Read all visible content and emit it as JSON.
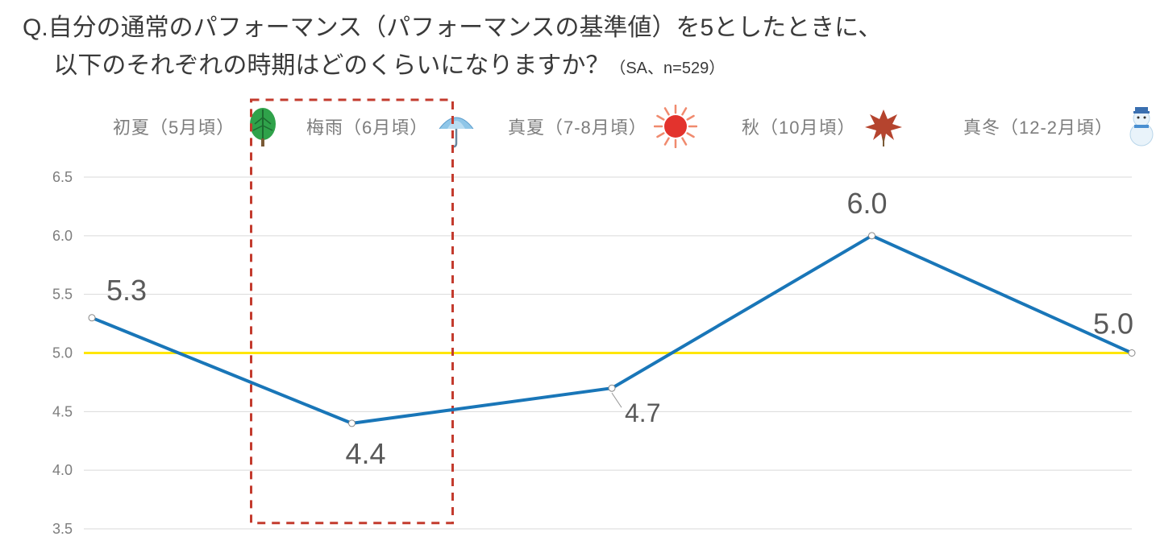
{
  "title_line1": "Q.自分の通常のパフォーマンス（パフォーマンスの基準値）を5としたときに、",
  "title_line2_main": "　 以下のそれぞれの時期はどのくらいになりますか？",
  "title_line2_sub": "（SA、n=529）",
  "seasons": [
    {
      "label": "初夏（5月頃）",
      "icon": "leaf"
    },
    {
      "label": "梅雨（6月頃）",
      "icon": "umbrella"
    },
    {
      "label": "真夏（7-8月頃）",
      "icon": "sun"
    },
    {
      "label": "秋（10月頃）",
      "icon": "maple"
    },
    {
      "label": "真冬（12-2月頃）",
      "icon": "snowman"
    }
  ],
  "chart": {
    "type": "line",
    "categories": [
      "初夏",
      "梅雨",
      "真夏",
      "秋",
      "真冬"
    ],
    "values": [
      5.3,
      4.4,
      4.7,
      6.0,
      5.0
    ],
    "value_labels": [
      "5.3",
      "4.4",
      "4.7",
      "6.0",
      "5.0"
    ],
    "ylim": [
      3.5,
      6.5
    ],
    "yticks": [
      3.5,
      4.0,
      4.5,
      5.0,
      5.5,
      6.0,
      6.5
    ],
    "ytick_labels": [
      "3.5",
      "4.0",
      "4.5",
      "5.0",
      "5.5",
      "6.0",
      "6.5"
    ],
    "reference_line": 5.0,
    "line_color": "#1976b8",
    "line_width": 4,
    "marker_fill": "#ffffff",
    "marker_stroke": "#888888",
    "marker_radius": 4,
    "grid_color": "#d9d9d9",
    "reference_color": "#ffe600",
    "background_color": "#ffffff",
    "value_font_color": "#5a5a5a",
    "value_font_size": 32,
    "highlight_index": 1,
    "highlight_color": "#c33b2e",
    "highlight_dash": "10 8",
    "label_positions": [
      "above",
      "below",
      "below",
      "above",
      "above"
    ]
  },
  "colors": {
    "title": "#3a3a3a",
    "season_label": "#7d7d7d",
    "tick_label": "#7d7d7d"
  }
}
